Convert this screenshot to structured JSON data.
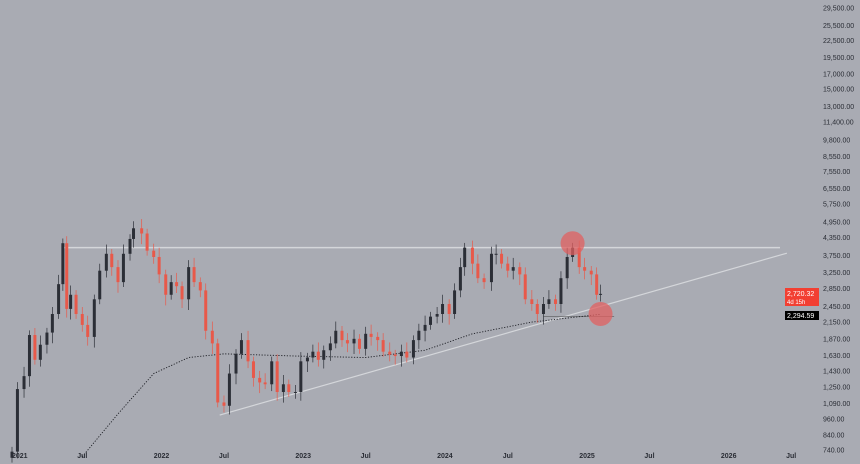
{
  "chart_data": {
    "type": "candlestick",
    "title": "",
    "yscale": "log",
    "ylim": [
      700,
      32000
    ],
    "xlim": [
      "2020-12-20",
      "2026-08-15"
    ],
    "y_ticks": [
      29500,
      25500,
      22500,
      19500,
      17000,
      15000,
      13000,
      11400,
      9800,
      8550,
      7550,
      6550,
      5750,
      4950,
      4350,
      3750,
      3250,
      2850,
      2450,
      2150,
      1870,
      1630,
      1430,
      1250,
      1090,
      960,
      840,
      740
    ],
    "x_ticks": [
      {
        "label": "2021",
        "date": "2021-01-01"
      },
      {
        "label": "Jul",
        "date": "2021-07-01"
      },
      {
        "label": "2022",
        "date": "2022-01-01"
      },
      {
        "label": "Jul",
        "date": "2022-07-01"
      },
      {
        "label": "2023",
        "date": "2023-01-01"
      },
      {
        "label": "Jul",
        "date": "2023-07-01"
      },
      {
        "label": "2024",
        "date": "2024-01-01"
      },
      {
        "label": "Jul",
        "date": "2024-07-01"
      },
      {
        "label": "2025",
        "date": "2025-01-01"
      },
      {
        "label": "Jul",
        "date": "2025-07-01"
      },
      {
        "label": "2026",
        "date": "2026-01-01"
      },
      {
        "label": "Jul",
        "date": "2026-07-01"
      }
    ],
    "closes": [
      [
        "2021-01-01",
        730
      ],
      [
        "2021-01-15",
        1230
      ],
      [
        "2021-02-01",
        1370
      ],
      [
        "2021-02-15",
        1930
      ],
      [
        "2021-03-01",
        1570
      ],
      [
        "2021-03-15",
        1780
      ],
      [
        "2021-04-01",
        1970
      ],
      [
        "2021-04-15",
        2300
      ],
      [
        "2021-05-01",
        2950
      ],
      [
        "2021-05-12",
        4150
      ],
      [
        "2021-05-22",
        2400
      ],
      [
        "2021-06-01",
        2700
      ],
      [
        "2021-06-15",
        2300
      ],
      [
        "2021-07-01",
        2100
      ],
      [
        "2021-07-15",
        1900
      ],
      [
        "2021-08-01",
        2600
      ],
      [
        "2021-08-15",
        3300
      ],
      [
        "2021-09-01",
        3800
      ],
      [
        "2021-09-15",
        3400
      ],
      [
        "2021-10-01",
        3000
      ],
      [
        "2021-10-15",
        3800
      ],
      [
        "2021-11-01",
        4300
      ],
      [
        "2021-11-10",
        4700
      ],
      [
        "2021-12-01",
        4500
      ],
      [
        "2021-12-15",
        3900
      ],
      [
        "2022-01-01",
        3700
      ],
      [
        "2022-01-15",
        3200
      ],
      [
        "2022-02-01",
        2700
      ],
      [
        "2022-02-15",
        3000
      ],
      [
        "2022-03-01",
        2900
      ],
      [
        "2022-03-15",
        2600
      ],
      [
        "2022-04-01",
        3400
      ],
      [
        "2022-04-15",
        3000
      ],
      [
        "2022-05-01",
        2800
      ],
      [
        "2022-05-15",
        2000
      ],
      [
        "2022-06-01",
        1800
      ],
      [
        "2022-06-15",
        1100
      ],
      [
        "2022-07-01",
        1070
      ],
      [
        "2022-07-15",
        1400
      ],
      [
        "2022-08-01",
        1650
      ],
      [
        "2022-08-15",
        1850
      ],
      [
        "2022-09-01",
        1550
      ],
      [
        "2022-09-15",
        1350
      ],
      [
        "2022-10-01",
        1300
      ],
      [
        "2022-10-15",
        1280
      ],
      [
        "2022-11-01",
        1550
      ],
      [
        "2022-11-15",
        1200
      ],
      [
        "2022-12-01",
        1280
      ],
      [
        "2022-12-15",
        1200
      ],
      [
        "2023-01-01",
        1200
      ],
      [
        "2023-01-15",
        1550
      ],
      [
        "2023-02-01",
        1600
      ],
      [
        "2023-02-15",
        1680
      ],
      [
        "2023-03-01",
        1570
      ],
      [
        "2023-03-15",
        1700
      ],
      [
        "2023-04-01",
        1800
      ],
      [
        "2023-04-15",
        2000
      ],
      [
        "2023-05-01",
        1850
      ],
      [
        "2023-05-15",
        1800
      ],
      [
        "2023-06-01",
        1870
      ],
      [
        "2023-06-15",
        1720
      ],
      [
        "2023-07-01",
        1950
      ],
      [
        "2023-07-15",
        1900
      ],
      [
        "2023-08-01",
        1850
      ],
      [
        "2023-08-15",
        1680
      ],
      [
        "2023-09-01",
        1640
      ],
      [
        "2023-09-15",
        1620
      ],
      [
        "2023-10-01",
        1680
      ],
      [
        "2023-10-15",
        1600
      ],
      [
        "2023-11-01",
        1850
      ],
      [
        "2023-11-15",
        2000
      ],
      [
        "2023-12-01",
        2100
      ],
      [
        "2023-12-15",
        2250
      ],
      [
        "2024-01-01",
        2300
      ],
      [
        "2024-01-15",
        2500
      ],
      [
        "2024-02-01",
        2300
      ],
      [
        "2024-02-15",
        2800
      ],
      [
        "2024-03-01",
        3400
      ],
      [
        "2024-03-12",
        4000
      ],
      [
        "2024-04-01",
        3500
      ],
      [
        "2024-04-15",
        3100
      ],
      [
        "2024-05-01",
        3000
      ],
      [
        "2024-05-20",
        3800
      ],
      [
        "2024-06-01",
        3800
      ],
      [
        "2024-06-15",
        3500
      ],
      [
        "2024-07-01",
        3300
      ],
      [
        "2024-07-15",
        3400
      ],
      [
        "2024-08-01",
        3200
      ],
      [
        "2024-08-15",
        2600
      ],
      [
        "2024-09-01",
        2500
      ],
      [
        "2024-09-15",
        2300
      ],
      [
        "2024-10-01",
        2500
      ],
      [
        "2024-10-15",
        2600
      ],
      [
        "2024-11-01",
        2500
      ],
      [
        "2024-11-15",
        3100
      ],
      [
        "2024-12-01",
        3700
      ],
      [
        "2024-12-15",
        4000
      ],
      [
        "2025-01-01",
        3400
      ],
      [
        "2025-01-15",
        3300
      ],
      [
        "2025-02-01",
        3200
      ],
      [
        "2025-02-15",
        2700
      ],
      [
        "2025-02-25",
        2720.32
      ]
    ],
    "moving_average": [
      [
        "2021-07-01",
        700
      ],
      [
        "2021-10-01",
        1000
      ],
      [
        "2022-01-01",
        1400
      ],
      [
        "2022-04-01",
        1600
      ],
      [
        "2022-07-01",
        1650
      ],
      [
        "2023-01-01",
        1620
      ],
      [
        "2023-07-01",
        1600
      ],
      [
        "2023-12-01",
        1700
      ],
      [
        "2024-04-01",
        1950
      ],
      [
        "2024-09-01",
        2150
      ],
      [
        "2025-02-25",
        2294.59
      ]
    ],
    "resistance_line": {
      "price": 4000,
      "from": "2021-05-12",
      "to": "2026-06-20"
    },
    "trend_line": {
      "from": [
        "2022-06-20",
        990
      ],
      "to": [
        "2026-06-20",
        3820
      ]
    },
    "support_mark": {
      "price": 2250,
      "from": "2024-10-01",
      "to": "2025-04-01"
    },
    "highlight_circles": [
      [
        "2024-12-15",
        4150
      ],
      [
        "2025-02-25",
        2300
      ]
    ],
    "last_price": {
      "value": "2,720.32",
      "countdown": "4d 15h"
    },
    "ma_label": "2,294.59",
    "colors": {
      "up": "#2b2e36",
      "down": "#e8594a",
      "background": "#a9abb3",
      "last_price_bg": "#f23f32",
      "ma_label_bg": "#000000",
      "circle": "#e26060",
      "lines": "#d4d6da"
    }
  }
}
